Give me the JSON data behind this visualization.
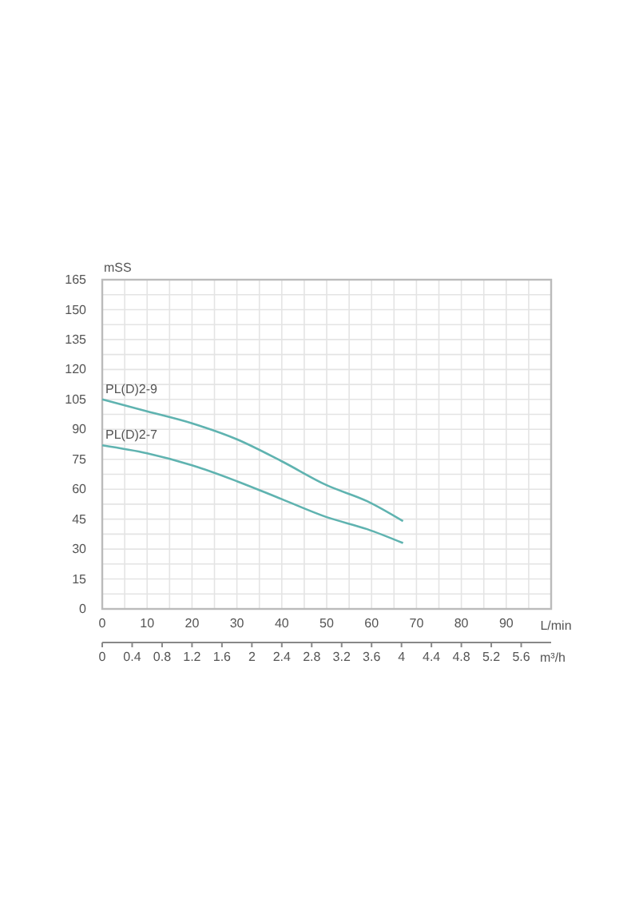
{
  "chart_data": {
    "type": "line",
    "ylabel": "mSS",
    "xlabel": "L/min",
    "x2label": "m³/h",
    "xlim": [
      0,
      100
    ],
    "xticks": [
      0,
      10,
      20,
      30,
      40,
      50,
      60,
      70,
      80,
      90
    ],
    "x2lim": [
      0,
      6
    ],
    "x2ticks": [
      0,
      0.4,
      0.8,
      1.2,
      1.6,
      2,
      2.4,
      2.8,
      3.2,
      3.6,
      4,
      4.4,
      4.8,
      5.2,
      5.6
    ],
    "ylim": [
      0,
      165
    ],
    "yticks": [
      0,
      15,
      30,
      45,
      60,
      75,
      90,
      105,
      120,
      135,
      150,
      165
    ],
    "grid": true,
    "legend": false,
    "marker": "none",
    "line_style": "solid",
    "series": [
      {
        "name": "PL(D)2-9",
        "color": "#5fb3b0",
        "x": [
          0,
          10,
          20,
          30,
          40,
          50,
          59,
          67
        ],
        "values": [
          105,
          99,
          93,
          85,
          74,
          62,
          54,
          44
        ]
      },
      {
        "name": "PL(D)2-7",
        "color": "#5fb3b0",
        "x": [
          0,
          10,
          20,
          30,
          40,
          50,
          59,
          67
        ],
        "values": [
          82,
          78,
          72,
          64,
          55,
          46,
          40,
          33
        ]
      }
    ]
  }
}
